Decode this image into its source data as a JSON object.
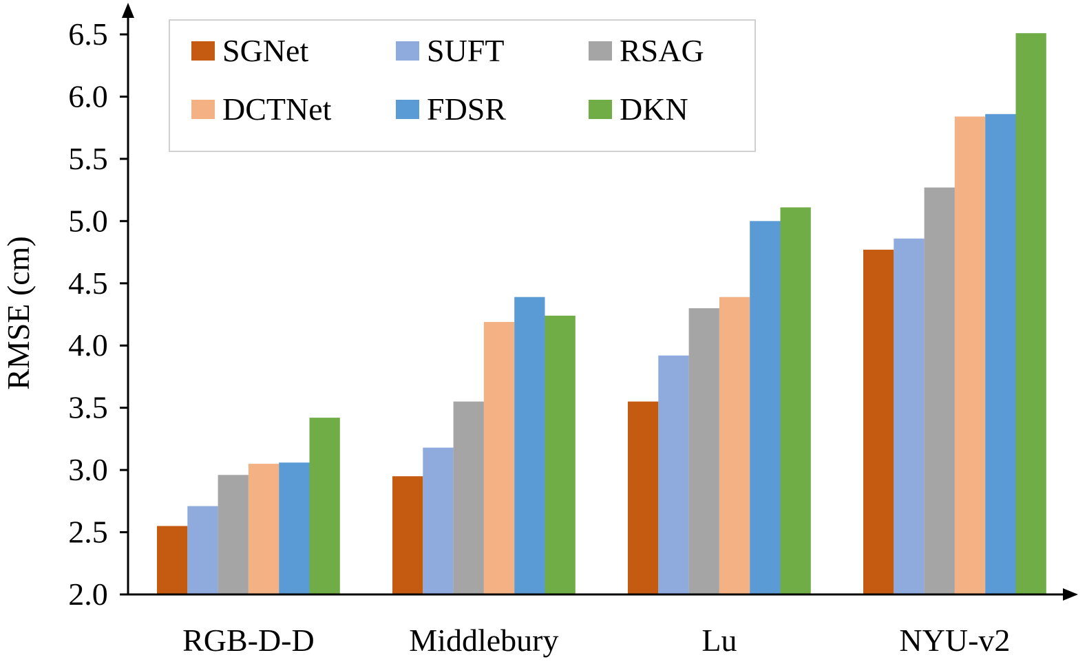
{
  "chart_data": {
    "type": "bar",
    "title": "",
    "xlabel": "",
    "ylabel": "RMSE (cm)",
    "ylim": [
      2.0,
      6.5
    ],
    "yticks": [
      "2.0",
      "2.5",
      "3.0",
      "3.5",
      "4.0",
      "4.5",
      "5.0",
      "5.5",
      "6.0",
      "6.5"
    ],
    "categories": [
      "RGB-D-D",
      "Middlebury",
      "Lu",
      "NYU-v2"
    ],
    "grid": false,
    "legend_position": "top-left",
    "series": [
      {
        "name": "SGNet",
        "color": "#c55a11",
        "values": [
          2.55,
          2.95,
          3.55,
          4.77
        ]
      },
      {
        "name": "SUFT",
        "color": "#8faadc",
        "values": [
          2.71,
          3.18,
          3.92,
          4.86
        ]
      },
      {
        "name": "RSAG",
        "color": "#a5a5a5",
        "values": [
          2.96,
          3.55,
          4.3,
          5.27
        ]
      },
      {
        "name": "DCTNet",
        "color": "#f4b183",
        "values": [
          3.05,
          4.19,
          4.39,
          5.84
        ]
      },
      {
        "name": "FDSR",
        "color": "#5b9bd5",
        "values": [
          3.06,
          4.39,
          5.0,
          5.86
        ]
      },
      {
        "name": "DKN",
        "color": "#70ad47",
        "values": [
          3.42,
          4.24,
          5.11,
          6.51
        ]
      }
    ]
  }
}
